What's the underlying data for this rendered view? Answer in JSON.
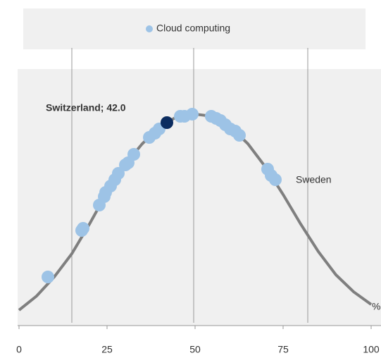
{
  "chart_data": {
    "type": "scatter",
    "legend_label": "Cloud computing",
    "x_axis_label": "%",
    "annotations": [
      {
        "text": "Switzerland; 42.0",
        "bold": true
      },
      {
        "text": "Sweden",
        "bold": false
      }
    ],
    "xlim": [
      0,
      100
    ],
    "xticks": [
      0,
      25,
      50,
      75,
      100
    ],
    "ylim": [
      0,
      1.2
    ],
    "color": "#9dc3e6",
    "highlight_color": "#0b2c5f",
    "highlight_index": 13,
    "curve_color": "#7f7f7f",
    "reference_lines": [
      15,
      49.6,
      82
    ],
    "x": [
      8.2,
      17.8,
      18.2,
      22.8,
      24.2,
      24.6,
      26,
      27.2,
      28.2,
      30.2,
      31,
      32.6,
      37,
      42.0,
      38.6,
      39.8,
      45.8,
      47,
      49.2,
      54.6,
      56,
      57.2,
      58.6,
      60,
      61.4,
      62.6,
      70.6,
      71.6,
      72.8
    ],
    "y": [
      0.23,
      0.45,
      0.46,
      0.57,
      0.61,
      0.63,
      0.66,
      0.69,
      0.72,
      0.76,
      0.77,
      0.81,
      0.89,
      0.96,
      0.91,
      0.93,
      0.99,
      0.99,
      1.0,
      0.99,
      0.98,
      0.97,
      0.95,
      0.93,
      0.92,
      0.9,
      0.74,
      0.71,
      0.69
    ],
    "curve": {
      "x": [
        0,
        5,
        10,
        15,
        20,
        25,
        30,
        35,
        40,
        45,
        50,
        55,
        60,
        65,
        70,
        75,
        80,
        85,
        90,
        95,
        100
      ],
      "y": [
        0.073,
        0.14,
        0.23,
        0.34,
        0.48,
        0.63,
        0.76,
        0.86,
        0.94,
        0.99,
        1.0,
        0.99,
        0.94,
        0.86,
        0.75,
        0.62,
        0.48,
        0.35,
        0.24,
        0.16,
        0.1
      ]
    }
  }
}
